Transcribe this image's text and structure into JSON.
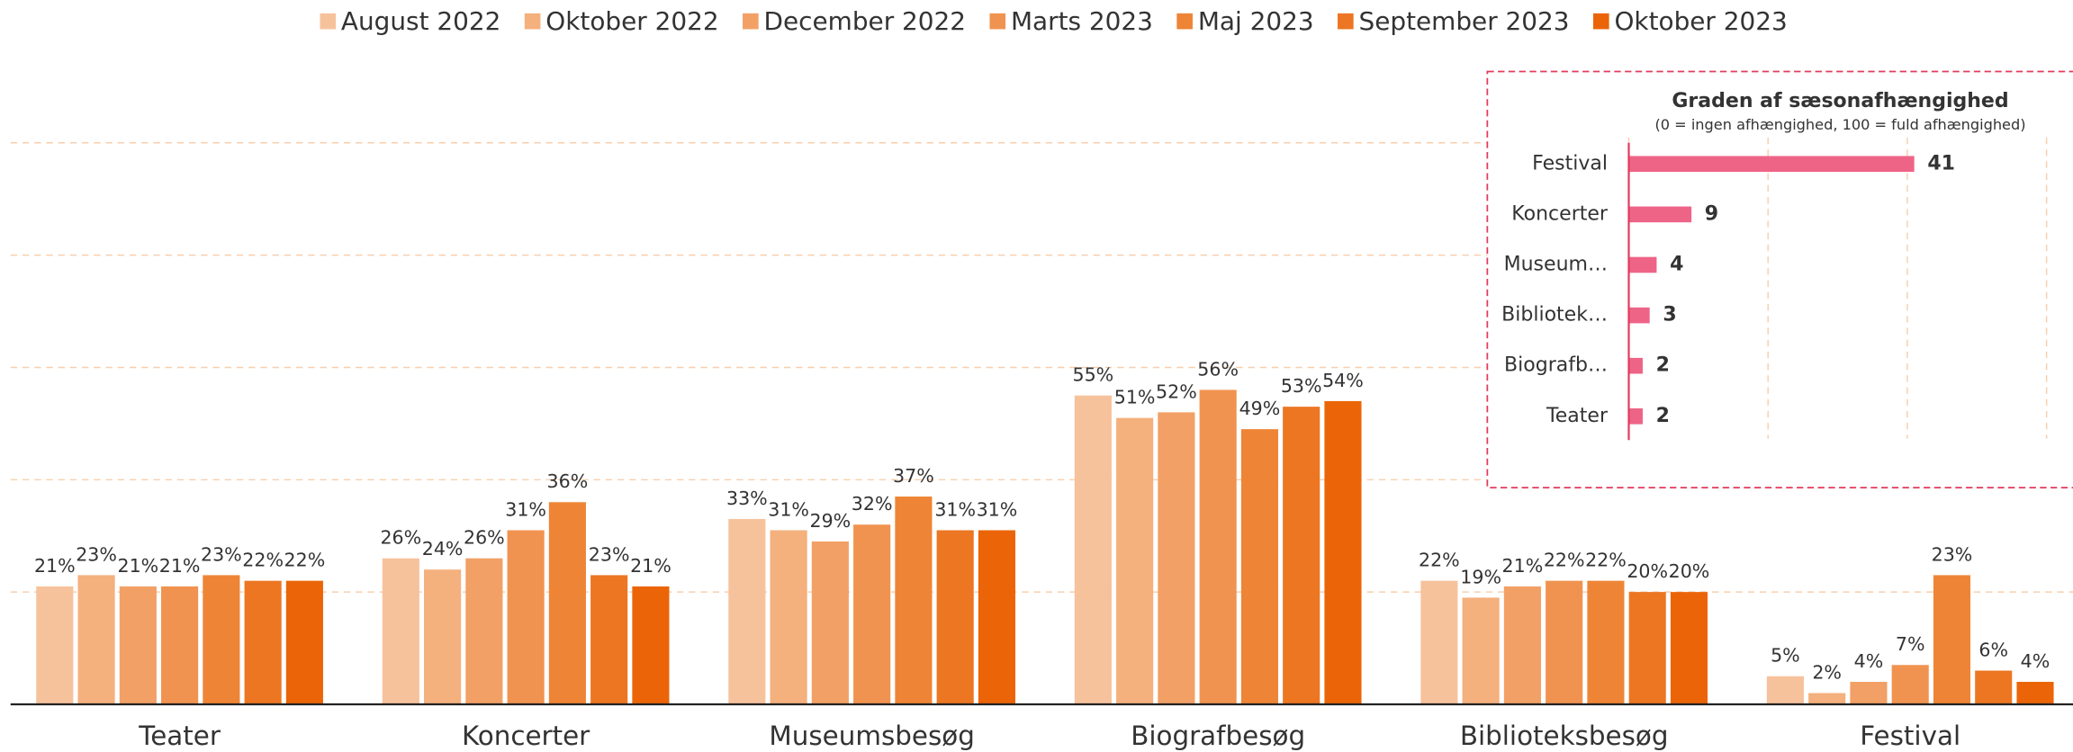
{
  "chart_data": [
    {
      "type": "bar",
      "categories": [
        "Teater",
        "Koncerter",
        "Museumsbesøg",
        "Biografbesøg",
        "Biblioteksbesøg",
        "Festival"
      ],
      "series": [
        {
          "name": "August 2022",
          "color": "#f6c29c",
          "values": [
            21,
            26,
            33,
            55,
            22,
            5
          ],
          "value_labels": [
            "21%",
            "26%",
            "33%",
            "55%",
            "22%",
            "5%"
          ]
        },
        {
          "name": "Oktober 2022",
          "color": "#f4b07d",
          "values": [
            23,
            24,
            31,
            51,
            19,
            2
          ],
          "value_labels": [
            "23%",
            "24%",
            "31%",
            "51%",
            "19%",
            "2%"
          ]
        },
        {
          "name": "December 2022",
          "color": "#f2a066",
          "values": [
            21,
            26,
            29,
            52,
            21,
            4
          ],
          "value_labels": [
            "21%",
            "26%",
            "29%",
            "52%",
            "21%",
            "4%"
          ]
        },
        {
          "name": "Marts 2023",
          "color": "#f09350",
          "values": [
            21,
            31,
            32,
            56,
            22,
            7
          ],
          "value_labels": [
            "21%",
            "31%",
            "32%",
            "56%",
            "22%",
            "7%"
          ]
        },
        {
          "name": "Maj 2023",
          "color": "#ee8536",
          "values": [
            23,
            36,
            37,
            49,
            22,
            23
          ],
          "value_labels": [
            "23%",
            "36%",
            "37%",
            "49%",
            "22%",
            "23%"
          ]
        },
        {
          "name": "September 2023",
          "color": "#ec7622",
          "values": [
            22,
            23,
            31,
            53,
            20,
            6
          ],
          "value_labels": [
            "22%",
            "23%",
            "31%",
            "53%",
            "20%",
            "6%"
          ]
        },
        {
          "name": "Oktober 2023",
          "color": "#eb6508",
          "values": [
            22,
            21,
            31,
            54,
            20,
            4
          ],
          "value_labels": [
            "22%",
            "21%",
            "31%",
            "54%",
            "20%",
            "4%"
          ]
        }
      ],
      "ylim": [
        0,
        100
      ],
      "yticks": [
        0,
        20,
        40,
        60,
        80,
        100
      ],
      "grid": true,
      "legend": "top"
    },
    {
      "type": "hbar",
      "title": "Graden af sæsonafhængighed",
      "subtitle": "(0 = ingen afhængighed, 100 = fuld afhængighed)",
      "categories": [
        "Festival",
        "Koncerter",
        "Museum…",
        "Bibliotek…",
        "Biografb…",
        "Teater"
      ],
      "values": [
        41,
        9,
        4,
        3,
        2,
        2
      ],
      "color": "#ee6487",
      "xlim": [
        0,
        60
      ],
      "xticks": [
        0,
        20,
        40,
        60
      ],
      "grid": true
    }
  ]
}
